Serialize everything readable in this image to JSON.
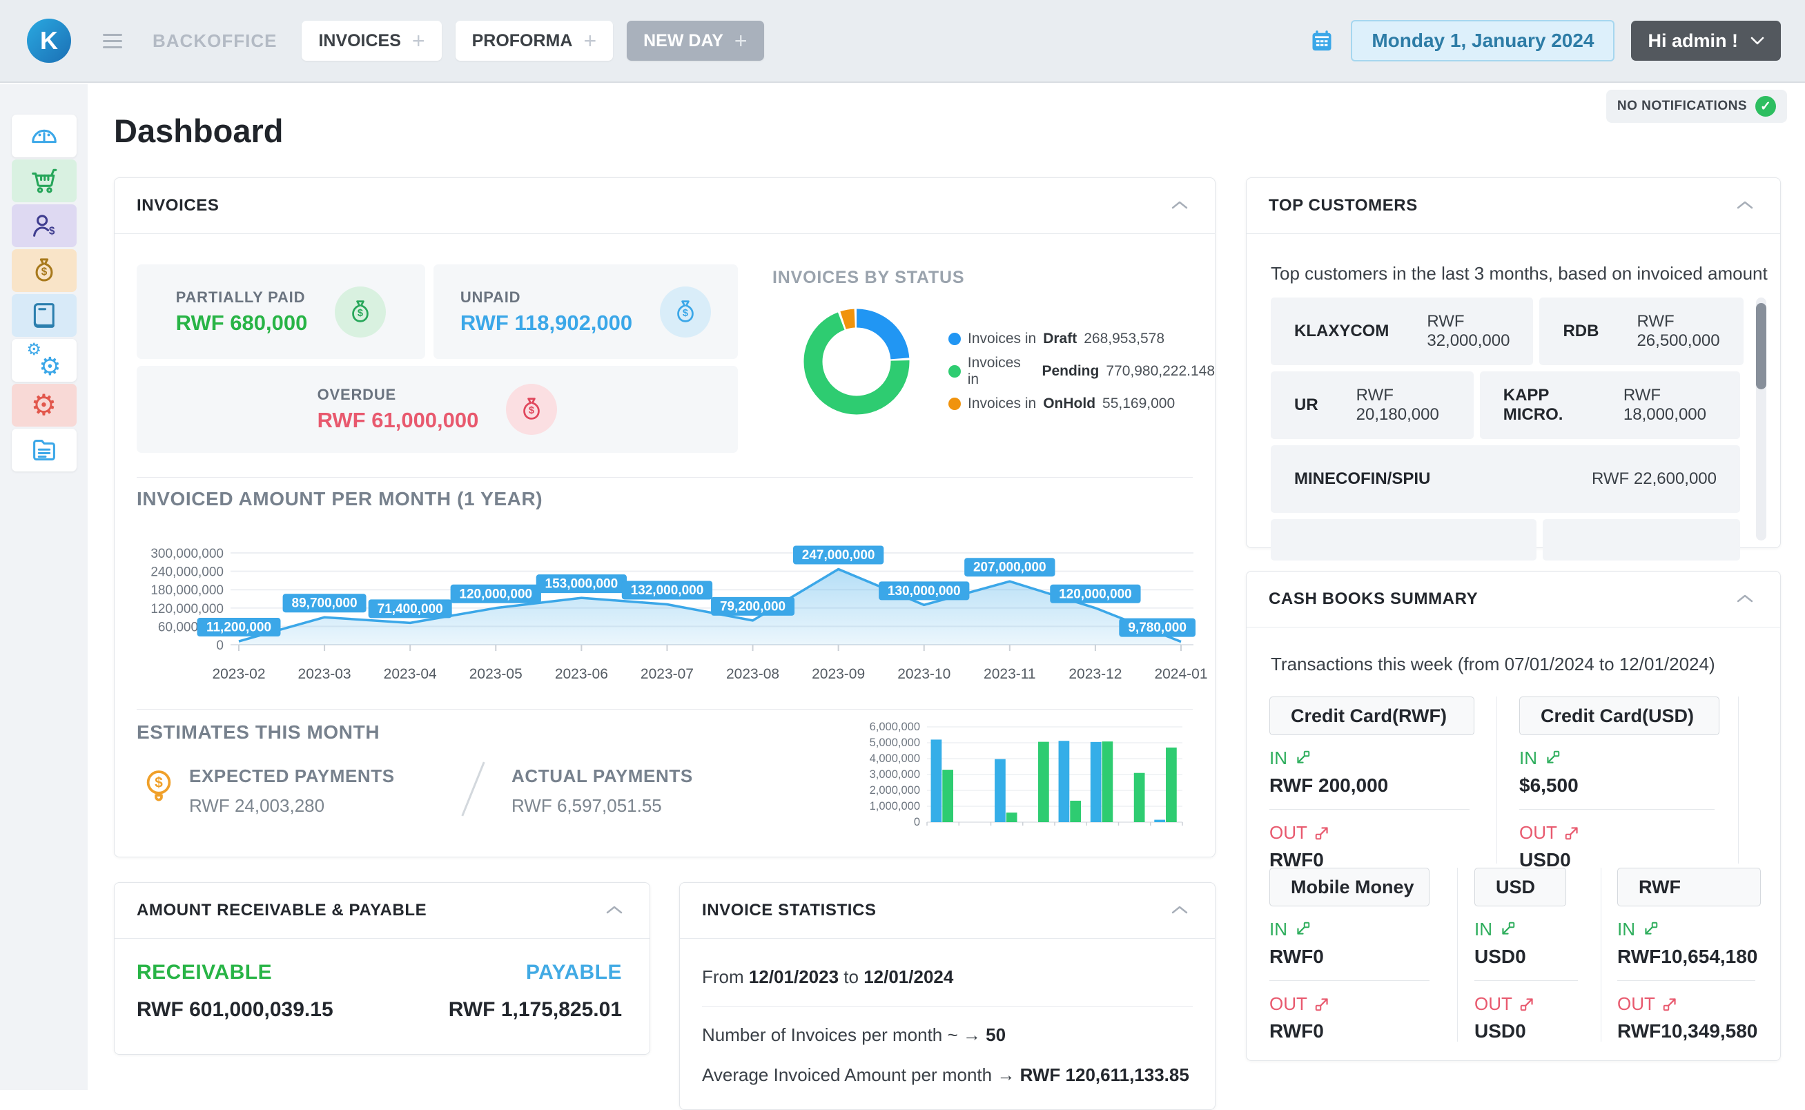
{
  "colors": {
    "accent_blue": "#3ba7e8",
    "green": "#28b446",
    "red": "#e8596e",
    "orange": "#f0a02a"
  },
  "topbar": {
    "backoffice_label": "BACKOFFICE",
    "tabs": [
      {
        "label": "INVOICES"
      },
      {
        "label": "PROFORMA"
      },
      {
        "label": "NEW DAY"
      }
    ],
    "date_label": "Monday 1, January 2024",
    "user_label": "Hi admin !"
  },
  "notifications_badge": "NO NOTIFICATIONS",
  "page_title": "Dashboard",
  "sidebar": {
    "items": [
      {
        "icon": "gauge-icon"
      },
      {
        "icon": "cart-icon"
      },
      {
        "icon": "customer-money-icon"
      },
      {
        "icon": "money-bag-icon"
      },
      {
        "icon": "book-icon"
      },
      {
        "icon": "gears-icon"
      },
      {
        "icon": "gear-icon"
      },
      {
        "icon": "documents-icon"
      }
    ]
  },
  "invoices_panel": {
    "title": "INVOICES",
    "partially_paid": {
      "label": "PARTIALLY PAID",
      "value": "RWF 680,000"
    },
    "unpaid": {
      "label": "UNPAID",
      "value": "RWF 118,902,000"
    },
    "overdue": {
      "label": "OVERDUE",
      "value": "RWF 61,000,000"
    },
    "by_status": {
      "title": "INVOICES BY STATUS",
      "chart_data": {
        "type": "pie",
        "slices": [
          {
            "prefix": "Invoices in",
            "label": "Draft",
            "value": 268953578,
            "display": "268,953,578",
            "color": "#2196f3"
          },
          {
            "prefix": "Invoices in",
            "label": "Pending",
            "value": 770980222.148,
            "display": "770,980,222.148",
            "color": "#2ecc71"
          },
          {
            "prefix": "Invoices in",
            "label": "OnHold",
            "value": 55169000,
            "display": "55,169,000",
            "color": "#f0930d"
          }
        ]
      }
    },
    "monthly_chart": {
      "title": "INVOICED AMOUNT PER MONTH (1 YEAR)",
      "chart_data": {
        "type": "area",
        "x": [
          "2023-02",
          "2023-03",
          "2023-04",
          "2023-05",
          "2023-06",
          "2023-07",
          "2023-08",
          "2023-09",
          "2023-10",
          "2023-11",
          "2023-12",
          "2024-01"
        ],
        "values": [
          11200000,
          89700000,
          71400000,
          120000000,
          153000000,
          132000000,
          79200000,
          247000000,
          130000000,
          207000000,
          120000000,
          9780000
        ],
        "labels": [
          "11,200,000",
          "89,700,000",
          "71,400,000",
          "120,000,000",
          "153,000,000",
          "132,000,000",
          "79,200,000",
          "247,000,000",
          "130,000,000",
          "207,000,000",
          "120,000,000",
          "9,780,000"
        ],
        "ylim": [
          0,
          300000000
        ],
        "yticks": [
          "300,000,000",
          "240,000,000",
          "180,000,000",
          "120,000,000",
          "60,000,000",
          "0"
        ],
        "line_color": "#3ba7e8"
      }
    },
    "estimates": {
      "title": "ESTIMATES THIS MONTH",
      "expected_label": "EXPECTED PAYMENTS",
      "expected_value": "RWF 24,003,280",
      "actual_label": "ACTUAL PAYMENTS",
      "actual_value": "RWF 6,597,051.55",
      "chart_data": {
        "type": "bar",
        "ymax": 6000000,
        "yticks": [
          "6,000,000",
          "5,000,000",
          "4,000,000",
          "3,000,000",
          "2,000,000",
          "1,000,000",
          "0"
        ],
        "series": [
          {
            "name": "expected",
            "color": "#35aee8",
            "values": [
              5200000,
              0,
              3970000,
              0,
              5120000,
              5050000,
              0,
              150000
            ]
          },
          {
            "name": "actual",
            "color": "#2ecc71",
            "values": [
              3300000,
              0,
              600000,
              5060000,
              1350000,
              5080000,
              3100000,
              4700000
            ]
          }
        ]
      }
    }
  },
  "receivable_panel": {
    "title": "AMOUNT RECEIVABLE & PAYABLE",
    "receivable_label": "RECEIVABLE",
    "receivable_value": "RWF 601,000,039.15",
    "payable_label": "PAYABLE",
    "payable_value": "RWF 1,175,825.01"
  },
  "statistics_panel": {
    "title": "INVOICE STATISTICS",
    "range_prefix": "From",
    "range_from": "12/01/2023",
    "range_mid": "to",
    "range_to": "12/01/2024",
    "line1_label": "Number of Invoices per month ~ →",
    "line1_value": "50",
    "line2_label": "Average Invoiced Amount per month →",
    "line2_value": "RWF 120,611,133.85"
  },
  "top_customers": {
    "title": "TOP CUSTOMERS",
    "description": "Top customers in the last 3 months, based on invoiced amount",
    "customers": [
      {
        "name": "KLAXYCOM",
        "amount": "RWF 32,000,000"
      },
      {
        "name": "RDB",
        "amount": "RWF 26,500,000"
      },
      {
        "name": "UR",
        "amount": "RWF 20,180,000"
      },
      {
        "name": "KAPP MICRO.",
        "amount": "RWF 18,000,000"
      },
      {
        "name": "MINECOFIN/SPIU",
        "amount": "RWF 22,600,000"
      }
    ]
  },
  "cash_books": {
    "title": "CASH BOOKS SUMMARY",
    "description": "Transactions this week (from 07/01/2024 to 12/01/2024)",
    "in_label": "IN",
    "out_label": "OUT",
    "books": [
      {
        "name": "Credit Card(RWF)",
        "in": "RWF 200,000",
        "out": "RWF0"
      },
      {
        "name": "Credit Card(USD)",
        "in": "$6,500",
        "out": "USD0"
      },
      {
        "name": "Mobile Money",
        "in": "RWF0",
        "out": "RWF0"
      },
      {
        "name": "USD",
        "in": "USD0",
        "out": "USD0"
      },
      {
        "name": "RWF",
        "in": "RWF10,654,180",
        "out": "RWF10,349,580"
      }
    ]
  }
}
